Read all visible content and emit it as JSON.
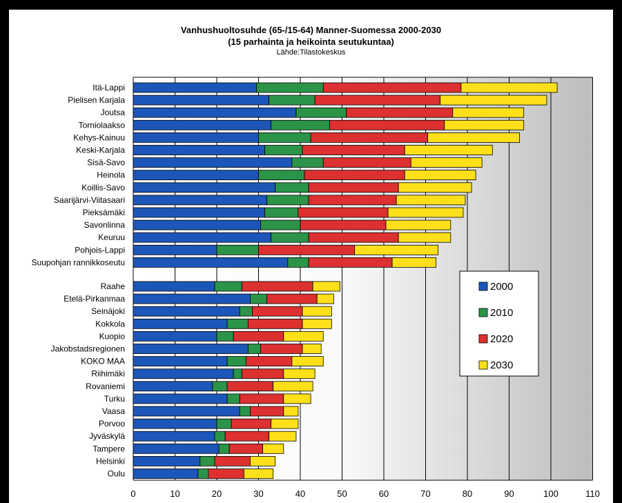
{
  "chart_data": {
    "type": "bar",
    "orientation": "horizontal",
    "stacking": "increment",
    "title": "Vanhushuoltosuhde (65-/15-64) Manner-Suomessa 2000-2030",
    "subtitle": "(15 parhainta ja heikointa seutukuntaa)",
    "source": "Lähde:Tilastokeskus",
    "xlim": [
      0,
      110
    ],
    "xticks": [
      "0",
      "10",
      "20",
      "30",
      "40",
      "50",
      "60",
      "70",
      "80",
      "90",
      "100",
      "110"
    ],
    "legend_position": "right",
    "grid": true,
    "colors": [
      "#1c56b8",
      "#2b9448",
      "#dd3030",
      "#fde01a"
    ],
    "groups": [
      {
        "categories": [
          "Itä-Lappi",
          "Pielisen Karjala",
          "Joutsa",
          "Torniolaakso",
          "Kehys-Kainuu",
          "Keski-Karjala",
          "Sisä-Savo",
          "Heinola",
          "Koillis-Savo",
          "Saarijärvi-Viitasaari",
          "Pieksämäki",
          "Savonlinna",
          "Keuruu",
          "Pohjois-Lappi",
          "Suupohjan rannikkoseutu"
        ],
        "series": [
          {
            "name": "2000",
            "values": [
              29.5,
              32.5,
              39,
              33,
              30,
              31.5,
              38,
              30,
              34,
              32,
              31.5,
              30.5,
              33,
              20,
              37
            ]
          },
          {
            "name": "2010",
            "values": [
              16,
              11,
              12,
              14,
              12.5,
              9,
              7.5,
              11,
              8,
              10,
              8,
              9.5,
              9,
              10,
              5
            ]
          },
          {
            "name": "2020",
            "values": [
              33,
              30,
              25.5,
              27.5,
              28,
              24.5,
              21,
              24,
              21.5,
              21,
              21.5,
              20.5,
              21.5,
              23,
              20
            ]
          },
          {
            "name": "2030",
            "values": [
              23,
              25.5,
              17,
              19,
              22,
              21,
              17,
              17,
              17.5,
              16.5,
              18,
              15.5,
              12.5,
              20,
              10.5
            ]
          }
        ]
      },
      {
        "categories": [
          "Raahe",
          "Etelä-Pirkanmaa",
          "Seinäjoki",
          "Kokkola",
          "Kuopio",
          "Jakobstadsregionen",
          "KOKO MAA",
          "Riihimäki",
          "Rovaniemi",
          "Turku",
          "Vaasa",
          "Porvoo",
          "Jyväskylä",
          "Tampere",
          "Helsinki",
          "Oulu"
        ],
        "series": [
          {
            "name": "2000",
            "values": [
              19.5,
              28,
              25.5,
              22.5,
              20,
              27.5,
              22.5,
              24,
              19,
              22.5,
              25.5,
              20,
              19.5,
              20.5,
              16,
              15.5
            ]
          },
          {
            "name": "2010",
            "values": [
              6.5,
              4,
              3,
              5,
              4,
              3,
              4.5,
              2,
              3.5,
              3,
              2.5,
              3.5,
              2.5,
              2.5,
              3.5,
              2.5
            ]
          },
          {
            "name": "2020",
            "values": [
              17,
              12,
              12,
              13,
              12,
              10,
              11,
              10,
              11,
              10.5,
              8,
              9.5,
              10.5,
              8,
              8.5,
              8.5
            ]
          },
          {
            "name": "2030",
            "values": [
              6.5,
              4,
              7,
              7,
              9.5,
              4.5,
              7.5,
              7.5,
              9.5,
              6.5,
              3.5,
              6.5,
              6.5,
              5,
              6,
              7
            ]
          }
        ]
      }
    ]
  }
}
